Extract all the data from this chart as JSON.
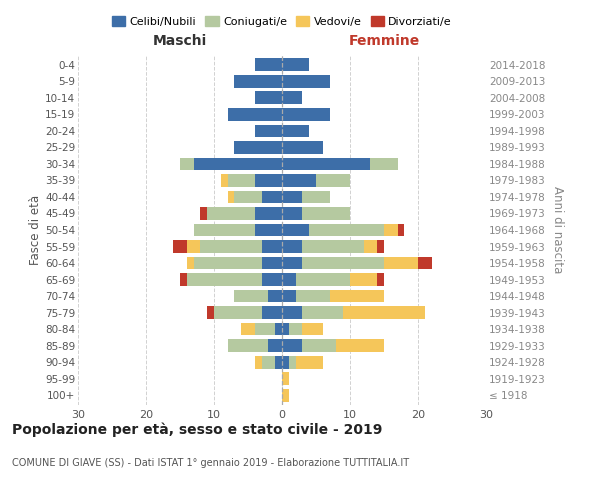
{
  "age_groups": [
    "100+",
    "95-99",
    "90-94",
    "85-89",
    "80-84",
    "75-79",
    "70-74",
    "65-69",
    "60-64",
    "55-59",
    "50-54",
    "45-49",
    "40-44",
    "35-39",
    "30-34",
    "25-29",
    "20-24",
    "15-19",
    "10-14",
    "5-9",
    "0-4"
  ],
  "birth_years": [
    "≤ 1918",
    "1919-1923",
    "1924-1928",
    "1929-1933",
    "1934-1938",
    "1939-1943",
    "1944-1948",
    "1949-1953",
    "1954-1958",
    "1959-1963",
    "1964-1968",
    "1969-1973",
    "1974-1978",
    "1979-1983",
    "1984-1988",
    "1989-1993",
    "1994-1998",
    "1999-2003",
    "2004-2008",
    "2009-2013",
    "2014-2018"
  ],
  "maschi": {
    "celibi": [
      0,
      0,
      1,
      2,
      1,
      3,
      2,
      3,
      3,
      3,
      4,
      4,
      3,
      4,
      13,
      7,
      4,
      8,
      4,
      7,
      4
    ],
    "coniugati": [
      0,
      0,
      2,
      6,
      3,
      7,
      5,
      11,
      10,
      9,
      9,
      7,
      4,
      4,
      2,
      0,
      0,
      0,
      0,
      0,
      0
    ],
    "vedovi": [
      0,
      0,
      1,
      0,
      2,
      0,
      0,
      0,
      1,
      2,
      0,
      0,
      1,
      1,
      0,
      0,
      0,
      0,
      0,
      0,
      0
    ],
    "divorziati": [
      0,
      0,
      0,
      0,
      0,
      1,
      0,
      1,
      0,
      2,
      0,
      1,
      0,
      0,
      0,
      0,
      0,
      0,
      0,
      0,
      0
    ]
  },
  "femmine": {
    "nubili": [
      0,
      0,
      1,
      3,
      1,
      3,
      2,
      2,
      3,
      3,
      4,
      3,
      3,
      5,
      13,
      6,
      4,
      7,
      3,
      7,
      4
    ],
    "coniugate": [
      0,
      0,
      1,
      5,
      2,
      6,
      5,
      8,
      12,
      9,
      11,
      7,
      4,
      5,
      4,
      0,
      0,
      0,
      0,
      0,
      0
    ],
    "vedove": [
      1,
      1,
      4,
      7,
      3,
      12,
      8,
      4,
      5,
      2,
      2,
      0,
      0,
      0,
      0,
      0,
      0,
      0,
      0,
      0,
      0
    ],
    "divorziate": [
      0,
      0,
      0,
      0,
      0,
      0,
      0,
      1,
      2,
      1,
      1,
      0,
      0,
      0,
      0,
      0,
      0,
      0,
      0,
      0,
      0
    ]
  },
  "colors": {
    "celibi_nubili": "#3d6ea8",
    "coniugati": "#b5c9a0",
    "vedovi": "#f5c65a",
    "divorziati": "#c0392b"
  },
  "xlim": 30,
  "title": "Popolazione per età, sesso e stato civile - 2019",
  "subtitle": "COMUNE DI GIAVE (SS) - Dati ISTAT 1° gennaio 2019 - Elaborazione TUTTITALIA.IT",
  "ylabel_left": "Fasce di età",
  "ylabel_right": "Anni di nascita",
  "xlabel_maschi": "Maschi",
  "xlabel_femmine": "Femmine",
  "background_color": "#ffffff",
  "grid_color": "#cccccc"
}
